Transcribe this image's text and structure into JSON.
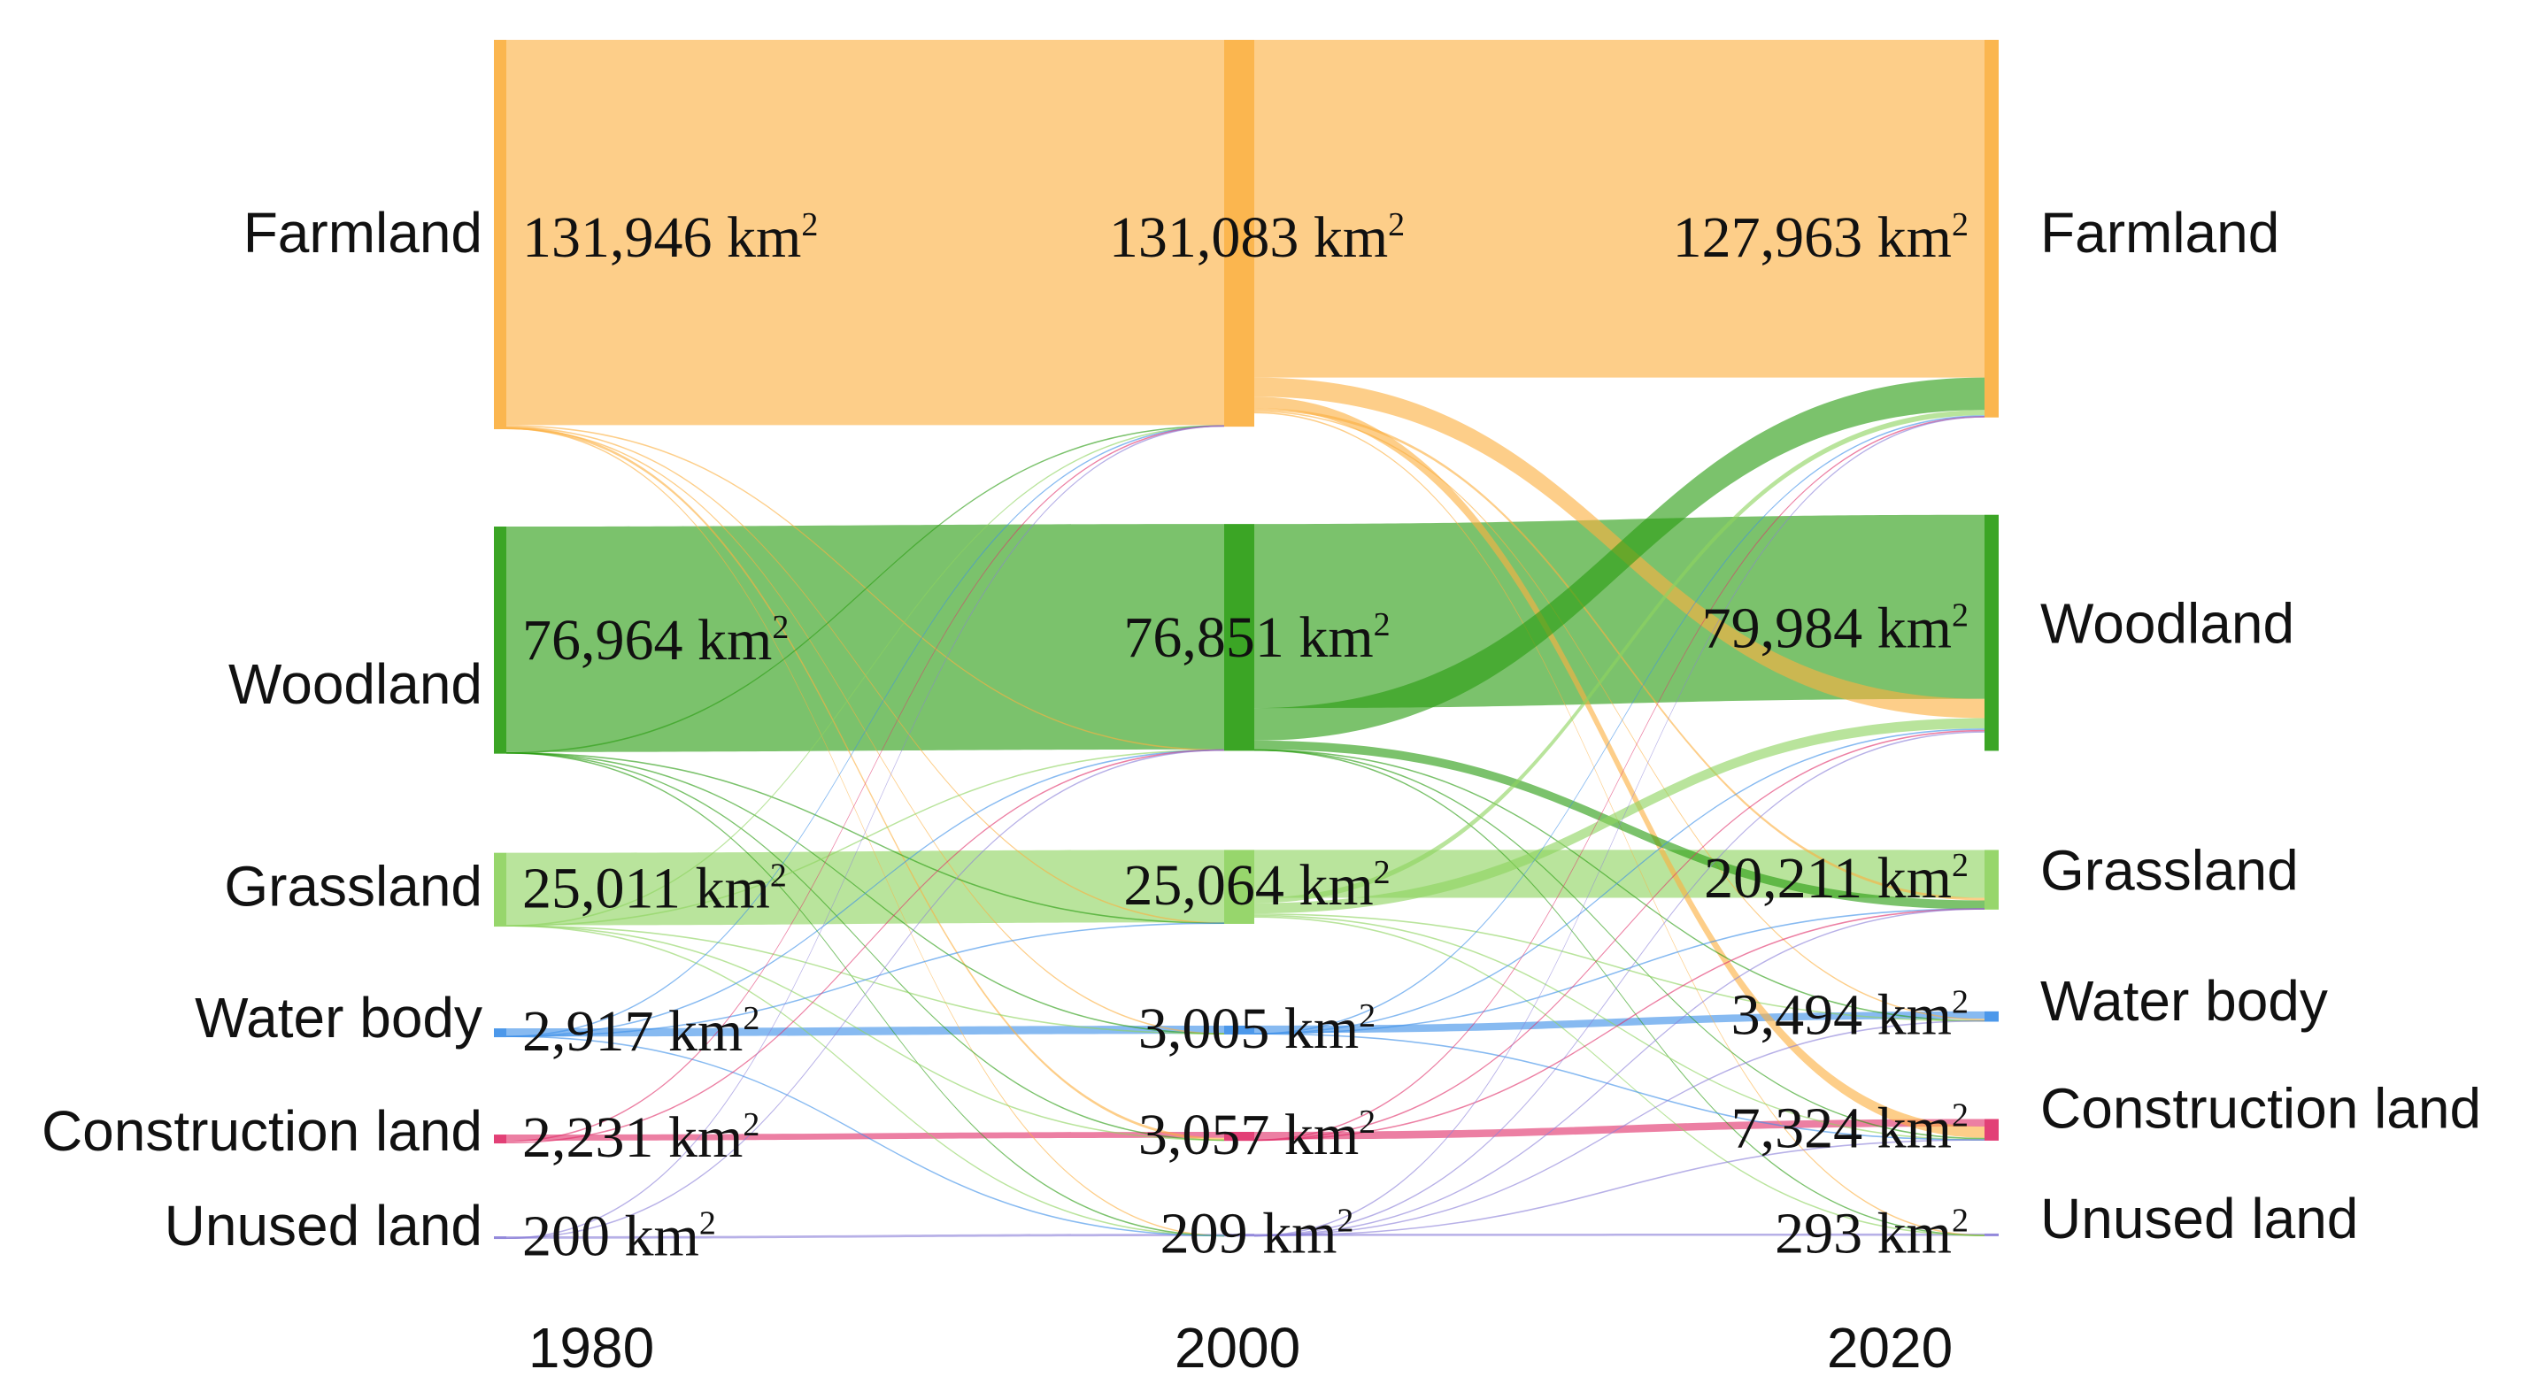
{
  "chart_data": {
    "type": "sankey",
    "unit": "km²",
    "years": [
      "1980",
      "2000",
      "2020"
    ],
    "categories": [
      {
        "name": "Farmland",
        "color": "#fbb040"
      },
      {
        "name": "Woodland",
        "color": "#2a9d12"
      },
      {
        "name": "Grassland",
        "color": "#8ed35f"
      },
      {
        "name": "Water body",
        "color": "#3d8fe8"
      },
      {
        "name": "Construction land",
        "color": "#e0306a"
      },
      {
        "name": "Unused land",
        "color": "#8a7fd8"
      }
    ],
    "areas": {
      "1980": [
        131946,
        76964,
        25011,
        2917,
        2231,
        200
      ],
      "2000": [
        131083,
        76851,
        25064,
        3005,
        3057,
        209
      ],
      "2020": [
        127963,
        79984,
        20211,
        3494,
        7324,
        293
      ]
    },
    "value_labels": {
      "1980": [
        "131,946 km",
        "76,964 km",
        "25,011 km",
        "2,917 km",
        "2,231 km",
        "200 km"
      ],
      "2000": [
        "131,083 km",
        "76,851 km",
        "25,064 km",
        "3,005 km",
        "3,057 km",
        "209 km"
      ],
      "2020": [
        "127,963 km",
        "79,984 km",
        "20,211 km",
        "3,494 km",
        "7,324 km",
        "293 km"
      ]
    },
    "unit_superscript": "2",
    "left_labels": [
      "Farmland",
      "Woodland",
      "Grassland",
      "Water body",
      "Construction land",
      "Unused land"
    ],
    "right_labels": [
      "Farmland",
      "Woodland",
      "Grassland",
      "Water body",
      "Construction land",
      "Unused land"
    ],
    "flows_1980_2000": [
      {
        "from": "Farmland",
        "to": "Woodland",
        "value": 180
      },
      {
        "from": "Farmland",
        "to": "Grassland",
        "value": 150
      },
      {
        "from": "Farmland",
        "to": "Water body",
        "value": 120
      },
      {
        "from": "Farmland",
        "to": "Construction land",
        "value": 900
      },
      {
        "from": "Farmland",
        "to": "Unused land",
        "value": 30
      },
      {
        "from": "Woodland",
        "to": "Farmland",
        "value": 250
      },
      {
        "from": "Woodland",
        "to": "Grassland",
        "value": 150
      },
      {
        "from": "Woodland",
        "to": "Water body",
        "value": 60
      },
      {
        "from": "Woodland",
        "to": "Construction land",
        "value": 80
      },
      {
        "from": "Woodland",
        "to": "Unused land",
        "value": 20
      },
      {
        "from": "Grassland",
        "to": "Farmland",
        "value": 140
      },
      {
        "from": "Grassland",
        "to": "Woodland",
        "value": 200
      },
      {
        "from": "Grassland",
        "to": "Water body",
        "value": 40
      },
      {
        "from": "Grassland",
        "to": "Construction land",
        "value": 40
      },
      {
        "from": "Grassland",
        "to": "Unused land",
        "value": 20
      },
      {
        "from": "Water body",
        "to": "Farmland",
        "value": 60
      },
      {
        "from": "Water body",
        "to": "Woodland",
        "value": 40
      },
      {
        "from": "Water body",
        "to": "Grassland",
        "value": 30
      },
      {
        "from": "Water body",
        "to": "Unused land",
        "value": 10
      },
      {
        "from": "Construction land",
        "to": "Farmland",
        "value": 80
      },
      {
        "from": "Construction land",
        "to": "Woodland",
        "value": 20
      },
      {
        "from": "Unused land",
        "to": "Farmland",
        "value": 10
      },
      {
        "from": "Unused land",
        "to": "Woodland",
        "value": 10
      }
    ],
    "flows_2000_2020": [
      {
        "from": "Farmland",
        "to": "Woodland",
        "value": 6500
      },
      {
        "from": "Farmland",
        "to": "Construction land",
        "value": 3800
      },
      {
        "from": "Farmland",
        "to": "Grassland",
        "value": 900
      },
      {
        "from": "Farmland",
        "to": "Water body",
        "value": 400
      },
      {
        "from": "Farmland",
        "to": "Unused land",
        "value": 60
      },
      {
        "from": "Woodland",
        "to": "Farmland",
        "value": 11000
      },
      {
        "from": "Woodland",
        "to": "Grassland",
        "value": 3000
      },
      {
        "from": "Woodland",
        "to": "Water body",
        "value": 120
      },
      {
        "from": "Woodland",
        "to": "Construction land",
        "value": 300
      },
      {
        "from": "Woodland",
        "to": "Unused land",
        "value": 40
      },
      {
        "from": "Grassland",
        "to": "Farmland",
        "value": 1800
      },
      {
        "from": "Grassland",
        "to": "Woodland",
        "value": 3500
      },
      {
        "from": "Grassland",
        "to": "Water body",
        "value": 60
      },
      {
        "from": "Grassland",
        "to": "Construction land",
        "value": 100
      },
      {
        "from": "Grassland",
        "to": "Unused land",
        "value": 40
      },
      {
        "from": "Water body",
        "to": "Farmland",
        "value": 300
      },
      {
        "from": "Water body",
        "to": "Woodland",
        "value": 80
      },
      {
        "from": "Water body",
        "to": "Grassland",
        "value": 40
      },
      {
        "from": "Water body",
        "to": "Construction land",
        "value": 60
      },
      {
        "from": "Construction land",
        "to": "Farmland",
        "value": 400
      },
      {
        "from": "Construction land",
        "to": "Woodland",
        "value": 60
      },
      {
        "from": "Construction land",
        "to": "Grassland",
        "value": 30
      },
      {
        "from": "Unused land",
        "to": "Farmland",
        "value": 30
      },
      {
        "from": "Unused land",
        "to": "Woodland",
        "value": 20
      },
      {
        "from": "Unused land",
        "to": "Grassland",
        "value": 20
      },
      {
        "from": "Unused land",
        "to": "Water body",
        "value": 10
      },
      {
        "from": "Unused land",
        "to": "Construction land",
        "value": 20
      }
    ]
  }
}
